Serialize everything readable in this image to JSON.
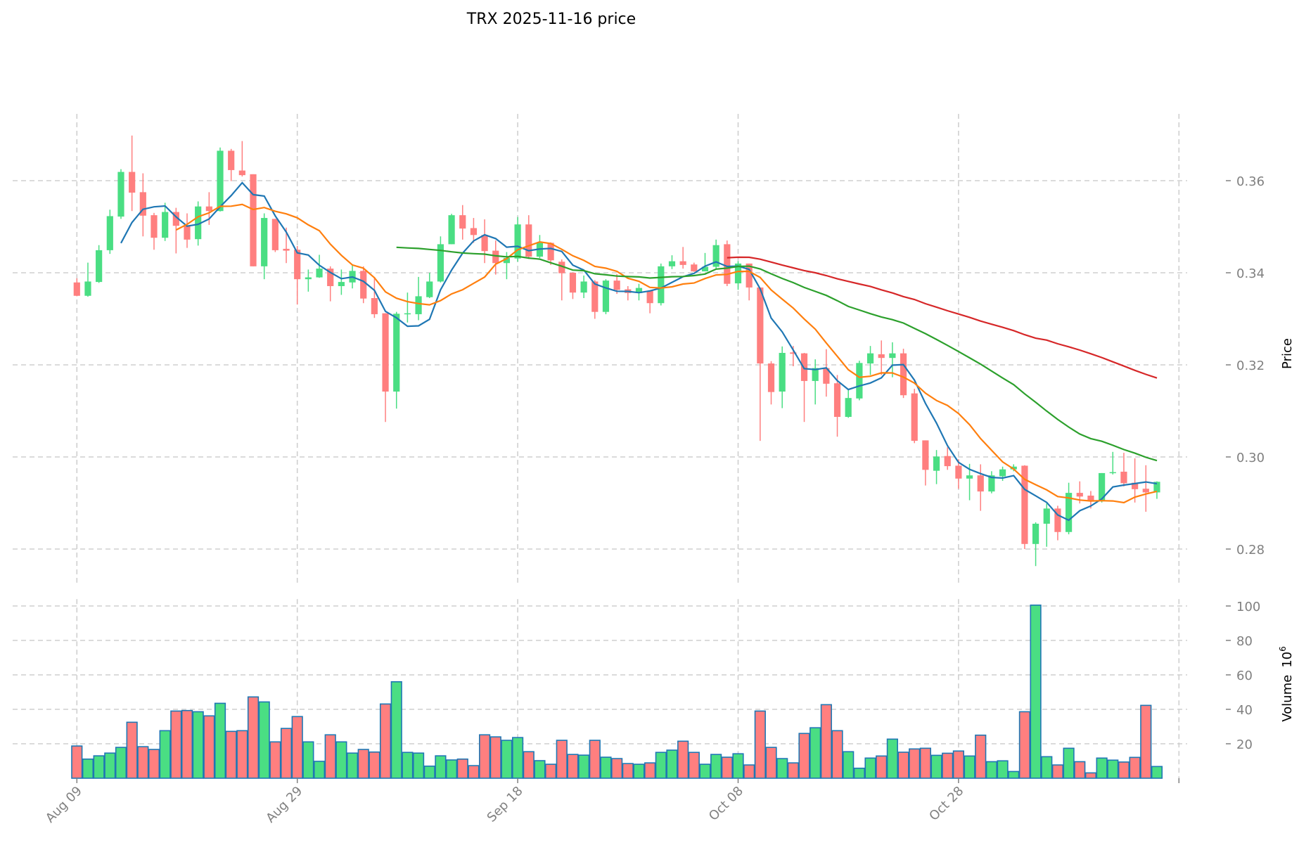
{
  "chart_data": {
    "type": "candlestick",
    "title": "TRX  2025-11-16  price",
    "ylabel": "Price",
    "volume_label": "Volume",
    "volume_exponent": "10",
    "volume_exponent_power": "6",
    "start_date": "2025-08-09",
    "frequency": "1D",
    "ylim": [
      0.2727,
      0.3745
    ],
    "volume_ylim": [
      0,
      104
    ],
    "grid": true,
    "price_ticks": [
      0.28,
      0.3,
      0.32,
      0.34,
      0.36
    ],
    "price_tick_labels": [
      "0.28",
      "0.30",
      "0.32",
      "0.34",
      "0.36"
    ],
    "volume_ticks": [
      20,
      40,
      60,
      80,
      100
    ],
    "volume_tick_labels": [
      "20",
      "40",
      "60",
      "80",
      "100"
    ],
    "x_tick_index": [
      0,
      20,
      40,
      60,
      80,
      100
    ],
    "x_tick_labels": [
      "Aug 09",
      "Aug 29",
      "Sep 18",
      "Oct 08",
      "Oct 28",
      ""
    ],
    "colors": {
      "up": "#4ade83",
      "down": "#ff7f7f",
      "volume_edge": "#1f77b4"
    },
    "moving_averages": [
      {
        "window": 5,
        "color": "#1f77b4"
      },
      {
        "window": 10,
        "color": "#ff7f0e"
      },
      {
        "window": 30,
        "color": "#2ca02c"
      },
      {
        "window": 60,
        "color": "#d62728"
      }
    ],
    "open": [
      0.3379,
      0.335,
      0.338,
      0.3449,
      0.3522,
      0.3619,
      0.3575,
      0.3525,
      0.3476,
      0.3532,
      0.3502,
      0.3473,
      0.3544,
      0.3534,
      0.3665,
      0.3622,
      0.3614,
      0.3414,
      0.3517,
      0.3452,
      0.345,
      0.3386,
      0.339,
      0.3409,
      0.3371,
      0.3379,
      0.3404,
      0.3345,
      0.3312,
      0.3142,
      0.331,
      0.331,
      0.3347,
      0.3381,
      0.3462,
      0.3525,
      0.3497,
      0.3482,
      0.3448,
      0.3421,
      0.3431,
      0.3505,
      0.3435,
      0.3465,
      0.3424,
      0.34,
      0.3357,
      0.3381,
      0.3315,
      0.3383,
      0.3364,
      0.3356,
      0.3361,
      0.3334,
      0.3414,
      0.3425,
      0.3418,
      0.3403,
      0.3413,
      0.3462,
      0.3377,
      0.342,
      0.3368,
      0.3203,
      0.3142,
      0.3227,
      0.3225,
      0.3165,
      0.3193,
      0.316,
      0.3087,
      0.3127,
      0.3203,
      0.3223,
      0.3215,
      0.3225,
      0.3138,
      0.3036,
      0.297,
      0.3002,
      0.2981,
      0.2953,
      0.296,
      0.2925,
      0.2958,
      0.2973,
      0.2981,
      0.2811,
      0.2855,
      0.2888,
      0.2837,
      0.2922,
      0.2916,
      0.2906,
      0.2965,
      0.2968,
      0.2944,
      0.2931,
      0.2923
    ],
    "high": [
      0.3388,
      0.3422,
      0.346,
      0.3537,
      0.3625,
      0.3698,
      0.3616,
      0.353,
      0.3552,
      0.3541,
      0.3529,
      0.3555,
      0.3575,
      0.3672,
      0.3669,
      0.3686,
      0.3614,
      0.3529,
      0.3517,
      0.3498,
      0.3458,
      0.3407,
      0.3439,
      0.3414,
      0.3407,
      0.3416,
      0.3414,
      0.3391,
      0.3312,
      0.3315,
      0.3357,
      0.3391,
      0.34,
      0.3479,
      0.3528,
      0.3547,
      0.3519,
      0.3516,
      0.347,
      0.3445,
      0.3521,
      0.3525,
      0.3482,
      0.3466,
      0.3429,
      0.3401,
      0.3394,
      0.3384,
      0.3386,
      0.3397,
      0.3371,
      0.3376,
      0.3361,
      0.342,
      0.3438,
      0.3456,
      0.3422,
      0.3443,
      0.3472,
      0.347,
      0.3425,
      0.342,
      0.3368,
      0.3208,
      0.324,
      0.3241,
      0.3226,
      0.3212,
      0.3234,
      0.3178,
      0.3147,
      0.3209,
      0.3241,
      0.3253,
      0.3249,
      0.3235,
      0.3148,
      0.3036,
      0.3015,
      0.3021,
      0.2995,
      0.2985,
      0.2984,
      0.2969,
      0.2979,
      0.2984,
      0.2982,
      0.2858,
      0.2899,
      0.2894,
      0.2944,
      0.2947,
      0.2926,
      0.2965,
      0.3011,
      0.3009,
      0.2997,
      0.2982,
      0.2947
    ],
    "low": [
      0.3349,
      0.3348,
      0.3378,
      0.3441,
      0.3517,
      0.3534,
      0.3479,
      0.345,
      0.3469,
      0.3442,
      0.3454,
      0.3459,
      0.3504,
      0.3533,
      0.3599,
      0.3609,
      0.3414,
      0.3386,
      0.3445,
      0.3421,
      0.3331,
      0.3359,
      0.3389,
      0.3338,
      0.3352,
      0.3366,
      0.3334,
      0.3302,
      0.3076,
      0.3105,
      0.3292,
      0.3297,
      0.3345,
      0.3379,
      0.3462,
      0.3472,
      0.3465,
      0.3421,
      0.3396,
      0.3386,
      0.3424,
      0.343,
      0.3432,
      0.3417,
      0.334,
      0.3343,
      0.3345,
      0.33,
      0.331,
      0.3354,
      0.334,
      0.334,
      0.3312,
      0.3329,
      0.3408,
      0.3409,
      0.3402,
      0.3403,
      0.3407,
      0.3371,
      0.3363,
      0.334,
      0.3035,
      0.3114,
      0.3106,
      0.3197,
      0.3076,
      0.3114,
      0.3131,
      0.3044,
      0.3085,
      0.3123,
      0.3178,
      0.3178,
      0.3173,
      0.3128,
      0.303,
      0.2938,
      0.2941,
      0.2972,
      0.2931,
      0.2906,
      0.2883,
      0.2921,
      0.2948,
      0.2969,
      0.28,
      0.2763,
      0.2805,
      0.2819,
      0.2832,
      0.2899,
      0.2888,
      0.2901,
      0.2962,
      0.2936,
      0.2901,
      0.2881,
      0.2909
    ],
    "close": [
      0.335,
      0.3381,
      0.3449,
      0.3523,
      0.3619,
      0.3574,
      0.3524,
      0.3476,
      0.3532,
      0.3502,
      0.3472,
      0.3544,
      0.3534,
      0.3665,
      0.3623,
      0.3612,
      0.3414,
      0.3519,
      0.3449,
      0.3448,
      0.3386,
      0.339,
      0.3409,
      0.3371,
      0.338,
      0.3404,
      0.3344,
      0.331,
      0.3142,
      0.3311,
      0.3312,
      0.3349,
      0.3381,
      0.3462,
      0.3525,
      0.3496,
      0.3482,
      0.3447,
      0.3421,
      0.3432,
      0.3505,
      0.3435,
      0.3465,
      0.3427,
      0.3399,
      0.3357,
      0.3381,
      0.3315,
      0.3383,
      0.3363,
      0.3356,
      0.3367,
      0.3334,
      0.3414,
      0.3425,
      0.3417,
      0.3403,
      0.3413,
      0.346,
      0.3376,
      0.342,
      0.3368,
      0.3203,
      0.3141,
      0.3226,
      0.3224,
      0.3165,
      0.3193,
      0.3159,
      0.3087,
      0.3128,
      0.3204,
      0.3225,
      0.3215,
      0.3225,
      0.3134,
      0.3035,
      0.2972,
      0.3001,
      0.298,
      0.2953,
      0.296,
      0.2925,
      0.296,
      0.2973,
      0.2979,
      0.2811,
      0.2855,
      0.2888,
      0.2837,
      0.2922,
      0.2914,
      0.2906,
      0.2965,
      0.2967,
      0.2943,
      0.293,
      0.2923,
      0.2946
    ],
    "volume": [
      18.7,
      11.1,
      13.0,
      14.6,
      17.9,
      32.5,
      18.3,
      16.7,
      27.6,
      39.0,
      39.3,
      38.6,
      36.2,
      43.5,
      27.2,
      27.6,
      47.2,
      44.3,
      21.1,
      28.9,
      35.8,
      21.1,
      9.8,
      25.2,
      21.1,
      14.6,
      16.7,
      15.2,
      43.1,
      56.0,
      15.0,
      14.6,
      7.0,
      13.0,
      10.6,
      11.1,
      7.3,
      25.2,
      24.0,
      22.0,
      23.6,
      15.4,
      10.2,
      8.1,
      22.0,
      13.8,
      13.4,
      22.0,
      12.2,
      11.4,
      8.5,
      8.1,
      8.9,
      15.0,
      16.3,
      21.5,
      15.0,
      8.1,
      13.8,
      12.2,
      14.2,
      7.7,
      39.0,
      17.9,
      11.4,
      8.9,
      26.0,
      29.3,
      42.7,
      27.6,
      15.4,
      5.8,
      11.7,
      12.9,
      22.7,
      15.1,
      17.0,
      17.4,
      13.3,
      14.5,
      15.8,
      12.9,
      25.0,
      9.6,
      10.1,
      3.9,
      38.6,
      100.5,
      12.5,
      7.7,
      17.4,
      9.6,
      3.1,
      11.7,
      10.5,
      9.4,
      12.1,
      42.3,
      6.8
    ]
  }
}
